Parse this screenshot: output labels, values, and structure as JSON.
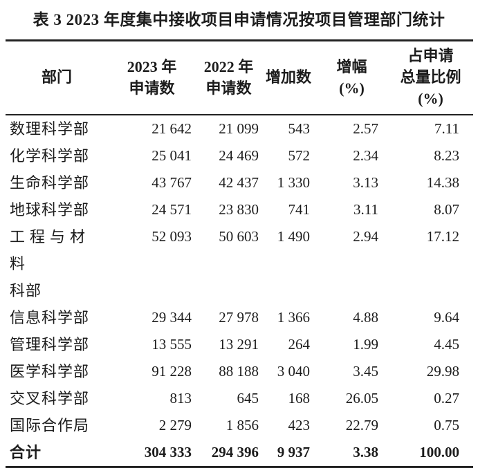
{
  "title": "表 3  2023 年度集中接收项目申请情况按项目管理部门统计",
  "table": {
    "columns": [
      {
        "key": "dept",
        "label_lines": [
          "部门"
        ]
      },
      {
        "key": "y2023",
        "label_lines": [
          "2023 年",
          "申请数"
        ]
      },
      {
        "key": "y2022",
        "label_lines": [
          "2022 年",
          "申请数"
        ]
      },
      {
        "key": "increase",
        "label_lines": [
          "增加数"
        ]
      },
      {
        "key": "growth",
        "label_lines": [
          "增幅",
          "(%)"
        ]
      },
      {
        "key": "share",
        "label_lines": [
          "占申请",
          "总量比例",
          "(%)"
        ]
      }
    ],
    "rows": [
      {
        "dept_lines": [
          "数理科学部"
        ],
        "y2023": "21 642",
        "y2022": "21 099",
        "increase": "543",
        "growth": "2.57",
        "share": "7.11"
      },
      {
        "dept_lines": [
          "化学科学部"
        ],
        "y2023": "25 041",
        "y2022": "24 469",
        "increase": "572",
        "growth": "2.34",
        "share": "8.23"
      },
      {
        "dept_lines": [
          "生命科学部"
        ],
        "y2023": "43 767",
        "y2022": "42 437",
        "increase": "1 330",
        "growth": "3.13",
        "share": "14.38"
      },
      {
        "dept_lines": [
          "地球科学部"
        ],
        "y2023": "24 571",
        "y2022": "23 830",
        "increase": "741",
        "growth": "3.11",
        "share": "8.07"
      },
      {
        "dept_lines": [
          "工程与材料",
          "科部"
        ],
        "y2023": "52 093",
        "y2022": "50 603",
        "increase": "1 490",
        "growth": "2.94",
        "share": "17.12"
      },
      {
        "dept_lines": [
          "信息科学部"
        ],
        "y2023": "29 344",
        "y2022": "27 978",
        "increase": "1 366",
        "growth": "4.88",
        "share": "9.64"
      },
      {
        "dept_lines": [
          "管理科学部"
        ],
        "y2023": "13 555",
        "y2022": "13 291",
        "increase": "264",
        "growth": "1.99",
        "share": "4.45"
      },
      {
        "dept_lines": [
          "医学科学部"
        ],
        "y2023": "91 228",
        "y2022": "88 188",
        "increase": "3 040",
        "growth": "3.45",
        "share": "29.98"
      },
      {
        "dept_lines": [
          "交叉科学部"
        ],
        "y2023": "813",
        "y2022": "645",
        "increase": "168",
        "growth": "26.05",
        "share": "0.27"
      },
      {
        "dept_lines": [
          "国际合作局"
        ],
        "y2023": "2 279",
        "y2022": "1 856",
        "increase": "423",
        "growth": "22.79",
        "share": "0.75"
      }
    ],
    "total_row": {
      "dept_lines": [
        "合计"
      ],
      "y2023": "304 333",
      "y2022": "294 396",
      "increase": "9 937",
      "growth": "3.38",
      "share": "100.00"
    }
  }
}
